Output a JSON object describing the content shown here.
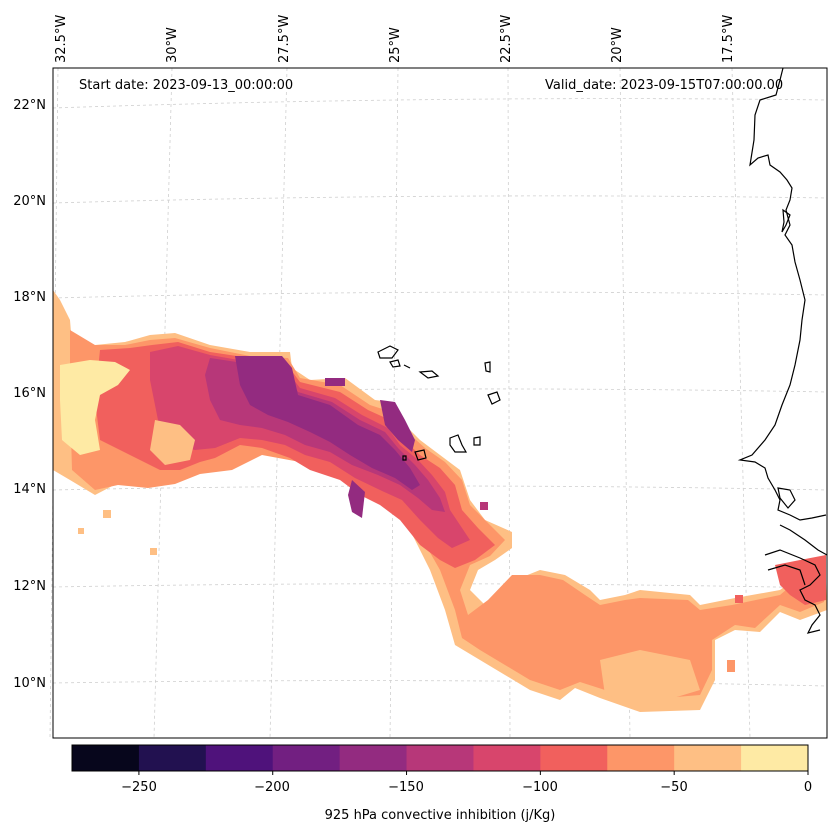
{
  "map": {
    "start_date_text": "Start date: 2023-09-13_00:00:00",
    "valid_date_text": "Valid_date: 2023-09-15T07:00:00.00",
    "lon_labels": [
      "32.5°W",
      "30°W",
      "27.5°W",
      "25°W",
      "22.5°W",
      "20°W",
      "17.5°W"
    ],
    "lat_labels": [
      "22°N",
      "20°N",
      "18°N",
      "16°N",
      "14°N",
      "12°N",
      "10°N"
    ],
    "extent": {
      "lon_min": -33.0,
      "lon_max": -16.5,
      "lat_min": 9.0,
      "lat_max": 22.6
    },
    "gridlines": true,
    "colormap": "magma"
  },
  "colorbar": {
    "label": "925 hPa convective inhibition (j/Kg)",
    "tick_labels": [
      "−250",
      "−200",
      "−150",
      "−100",
      "−50",
      "0"
    ],
    "levels": [
      -275,
      -250,
      -225,
      -200,
      -175,
      -150,
      -125,
      -100,
      -75,
      -50,
      -25,
      0
    ],
    "colors": [
      "#07061c",
      "#221150",
      "#4f127b",
      "#721f81",
      "#932b80",
      "#b73779",
      "#d8456c",
      "#f1605d",
      "#fd9668",
      "#febf84",
      "#feeaa4"
    ]
  }
}
